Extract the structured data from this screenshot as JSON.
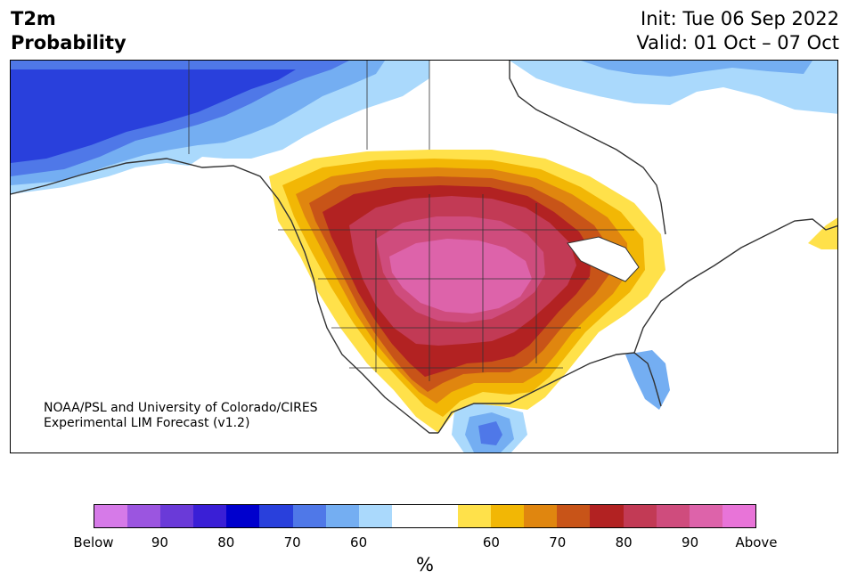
{
  "title": {
    "left_line1": "T2m",
    "left_line2": "Probability",
    "init": "Init: Tue 06 Sep 2022",
    "valid": "Valid: 01 Oct – 07 Oct"
  },
  "credit": {
    "line1": "NOAA/PSL and University of Colorado/CIRES",
    "line2": "Experimental LIM Forecast (v1.2)"
  },
  "colorbar": {
    "colors": [
      "#d67ae8",
      "#9b55e0",
      "#6a3ad8",
      "#3a1fd6",
      "#0000cd",
      "#2940dc",
      "#4f78e8",
      "#74aef2",
      "#aad9fc",
      "#ffffff",
      "#ffffff",
      "#ffe14a",
      "#f2b705",
      "#e0860f",
      "#c85418",
      "#b22222",
      "#c23a55",
      "#cf4c7d",
      "#dd63aa",
      "#e874d8"
    ],
    "labels": [
      "Below",
      "90",
      "80",
      "70",
      "60",
      "60",
      "70",
      "80",
      "90",
      "Above"
    ],
    "units": "%"
  },
  "map": {
    "region": "North America",
    "colors": {
      "below_strong": "#2940dc",
      "below_mid": "#4f78e8",
      "below_light": "#74aef2",
      "below_faint": "#aad9fc",
      "above_faint": "#ffe14a",
      "above_light": "#f2b705",
      "above_mid": "#e0860f",
      "above_strong": "#c85418",
      "above_70": "#b22222",
      "above_80": "#c23a55",
      "above_85": "#cf4c7d",
      "above_90": "#dd63aa",
      "coast": "#333333"
    }
  }
}
